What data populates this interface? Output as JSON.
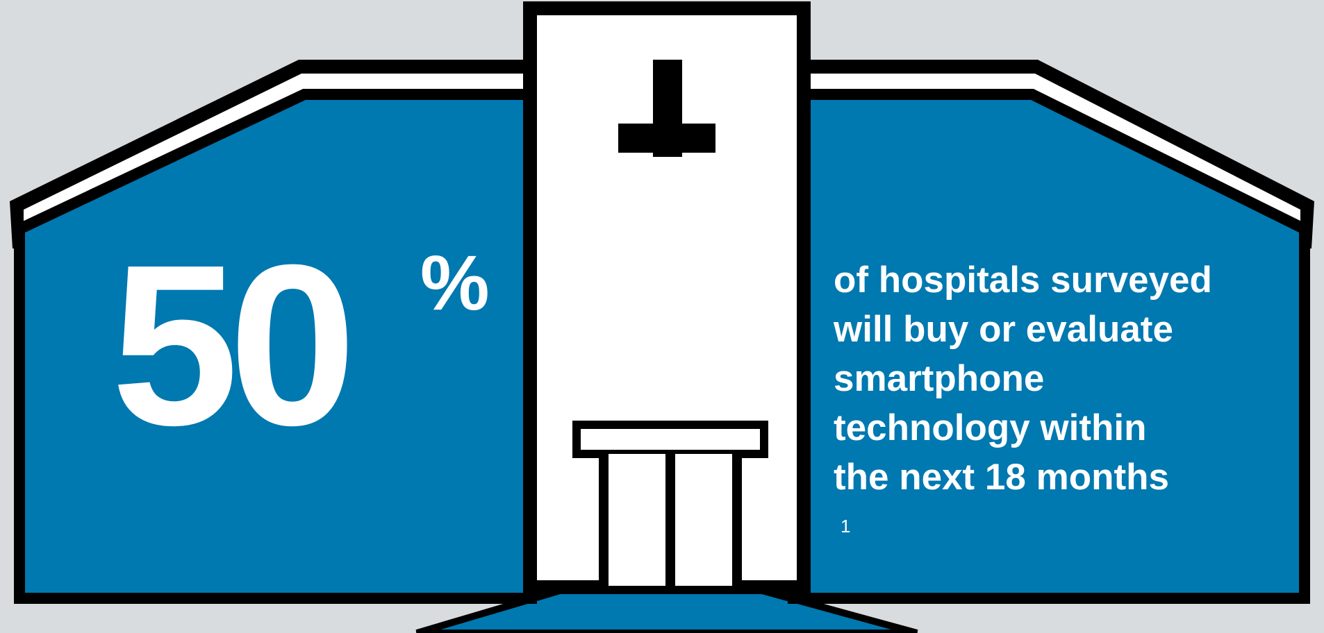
{
  "stat": {
    "number": "50",
    "unit": "%",
    "lines": [
      "of hospitals surveyed",
      "will buy or evaluate",
      "smartphone",
      "technology within",
      "the next 18 months"
    ],
    "footnote": "1"
  },
  "colors": {
    "background": "#d9dcde",
    "building_blue": "#0078b0",
    "outline": "#000000",
    "text": "#ffffff"
  },
  "icons": [
    "hospital-building-illustration",
    "medical-cross-icon"
  ]
}
